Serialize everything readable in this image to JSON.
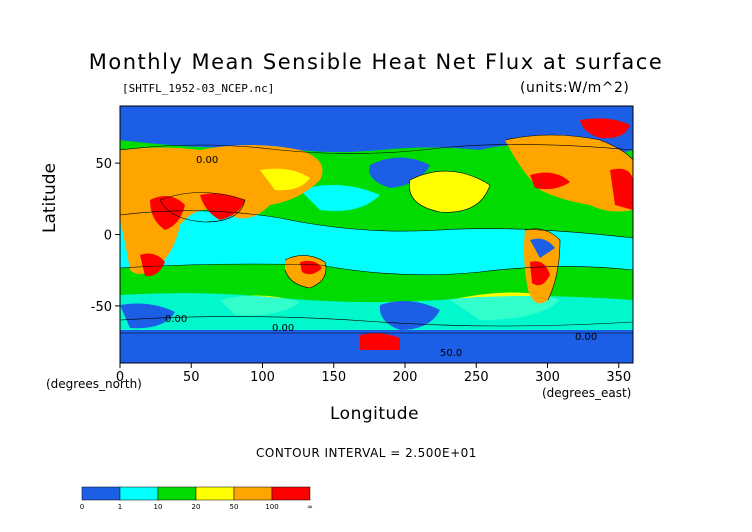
{
  "chart_data": {
    "type": "heatmap",
    "title": "Monthly Mean Sensible Heat Net Flux at surface",
    "file_label": "[SHTFL_1952-03_NCEP.nc]",
    "units_label": "(units:W/m^2)",
    "xlabel": "Longitude",
    "xlabel_units": "(degrees_east)",
    "ylabel": "Latitude",
    "ylabel_units": "(degrees_north)",
    "xlim": [
      0,
      360
    ],
    "ylim": [
      -90,
      90
    ],
    "x_ticks": [
      0,
      50,
      100,
      150,
      200,
      250,
      300,
      350
    ],
    "y_ticks": [
      50,
      0,
      -50
    ],
    "contour_interval": "CONTOUR INTERVAL = 2.500E+01",
    "contour_labels": [
      "0.00",
      "0.00",
      "50.0",
      "0.00",
      "0.00"
    ],
    "colorbar": {
      "labels": [
        "0",
        "1",
        "10",
        "20",
        "50",
        "100",
        "∞"
      ],
      "colors": [
        "#1c5ee6",
        "#00ffff",
        "#00dc00",
        "#ffff00",
        "#ffa500",
        "#ff0000"
      ]
    }
  }
}
